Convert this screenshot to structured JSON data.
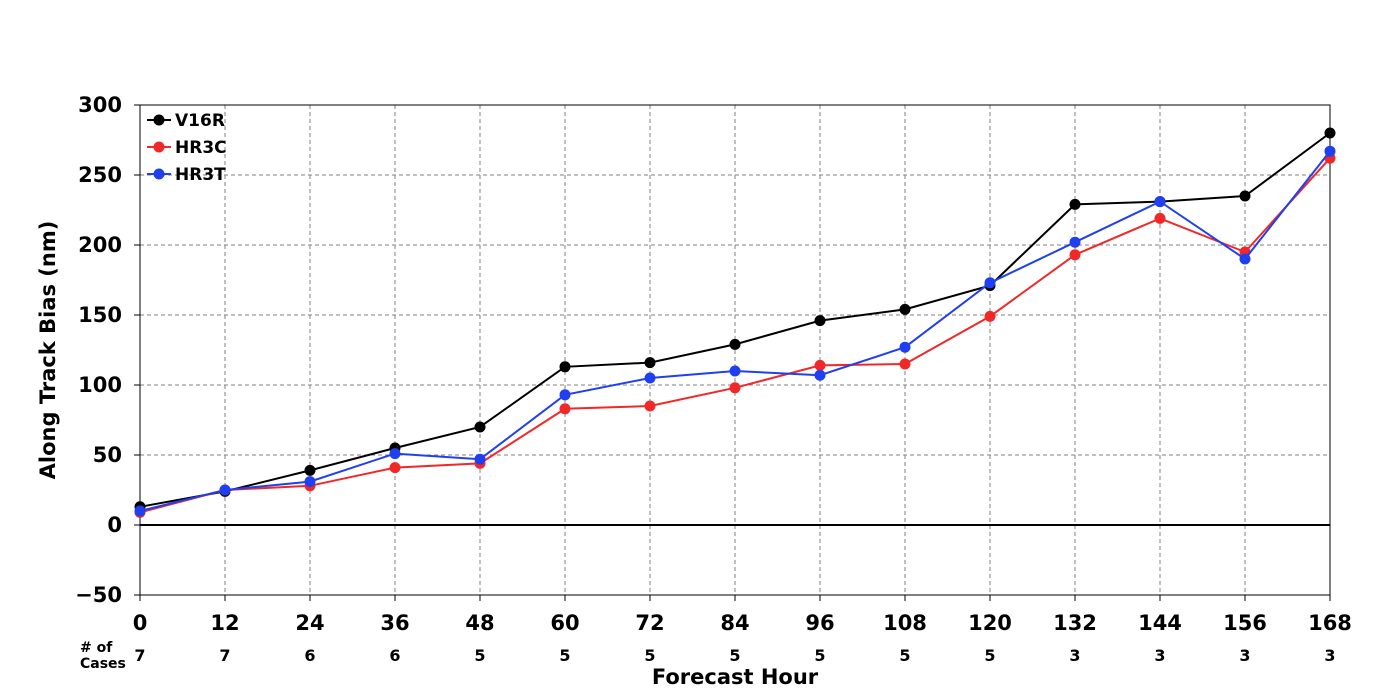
{
  "chart_data": {
    "type": "line",
    "title": "",
    "xlabel": "Forecast Hour",
    "ylabel": "Along Track Bias (nm)",
    "x": [
      0,
      12,
      24,
      36,
      48,
      60,
      72,
      84,
      96,
      108,
      120,
      132,
      144,
      156,
      168
    ],
    "xlim": [
      0,
      168
    ],
    "ylim": [
      -50,
      300
    ],
    "yticks": [
      -50,
      0,
      50,
      100,
      150,
      200,
      250,
      300
    ],
    "ytick_labels": [
      "−50",
      "0",
      "50",
      "100",
      "150",
      "200",
      "250",
      "300"
    ],
    "grid": true,
    "legend_position": "top-left",
    "cases_label": "# of\nCases",
    "cases": [
      7,
      7,
      6,
      6,
      5,
      5,
      5,
      5,
      5,
      5,
      5,
      3,
      3,
      3,
      3
    ],
    "series": [
      {
        "name": "V16R",
        "color": "#000000",
        "values": [
          13,
          24,
          39,
          55,
          70,
          113,
          116,
          129,
          146,
          154,
          171,
          229,
          231,
          235,
          280
        ]
      },
      {
        "name": "HR3C",
        "color": "#f02828",
        "values": [
          9,
          25,
          28,
          41,
          44,
          83,
          85,
          98,
          114,
          115,
          149,
          193,
          219,
          195,
          262
        ]
      },
      {
        "name": "HR3T",
        "color": "#2040f0",
        "values": [
          10,
          25,
          31,
          51,
          47,
          93,
          105,
          110,
          107,
          127,
          173,
          202,
          231,
          190,
          267
        ]
      }
    ]
  }
}
